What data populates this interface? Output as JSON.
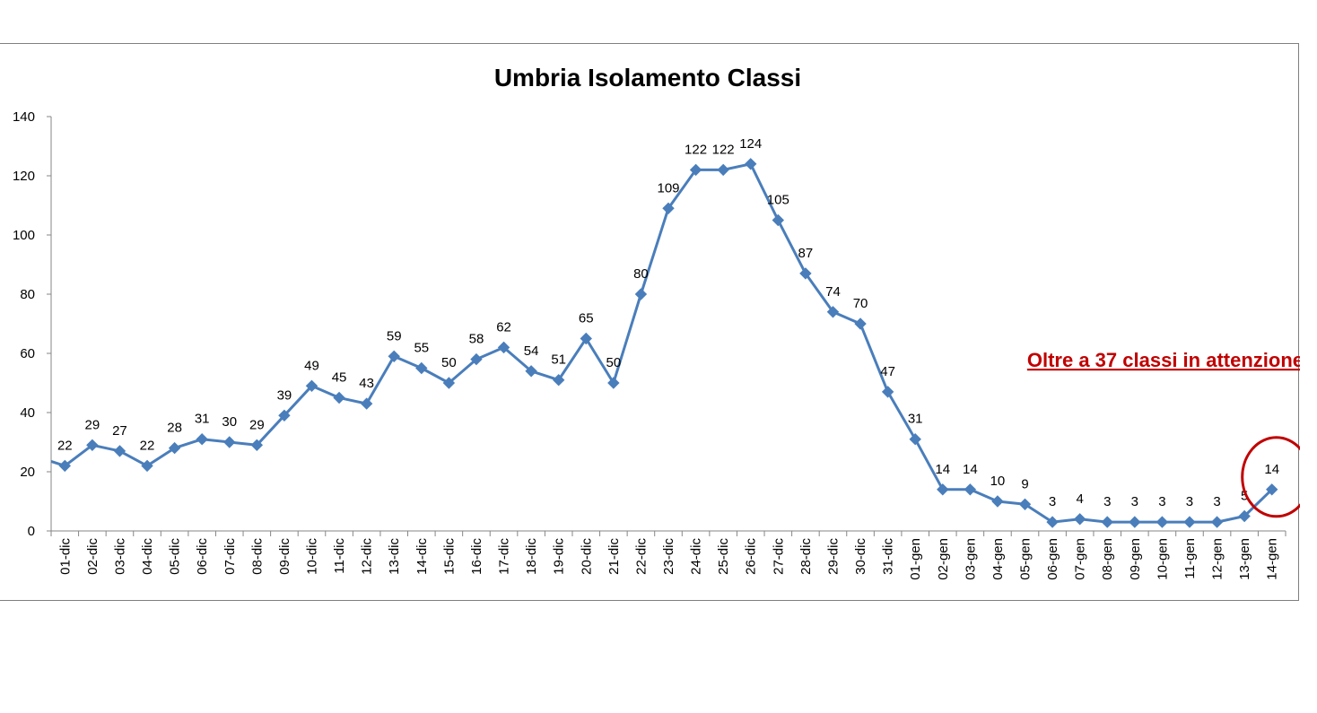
{
  "chart_data": {
    "type": "line",
    "title": "Umbria Isolamento Classi",
    "xlabel": "",
    "ylabel": "",
    "ylim": [
      0,
      140
    ],
    "yticks": [
      "0",
      "20",
      "40",
      "60",
      "80",
      "100",
      "120",
      "140"
    ],
    "grid": false,
    "legend": "none",
    "categories": [
      "01-dic",
      "02-dic",
      "03-dic",
      "04-dic",
      "05-dic",
      "06-dic",
      "07-dic",
      "08-dic",
      "09-dic",
      "10-dic",
      "11-dic",
      "12-dic",
      "13-dic",
      "14-dic",
      "15-dic",
      "16-dic",
      "17-dic",
      "18-dic",
      "19-dic",
      "20-dic",
      "21-dic",
      "22-dic",
      "23-dic",
      "24-dic",
      "25-dic",
      "26-dic",
      "27-dic",
      "28-dic",
      "29-dic",
      "30-dic",
      "31-dic",
      "01-gen",
      "02-gen",
      "03-gen",
      "04-gen",
      "05-gen",
      "06-gen",
      "07-gen",
      "08-gen",
      "09-gen",
      "10-gen",
      "11-gen",
      "12-gen",
      "13-gen",
      "14-gen"
    ],
    "series": [
      {
        "values": [
          22,
          29,
          27,
          22,
          28,
          31,
          30,
          29,
          39,
          49,
          45,
          43,
          59,
          55,
          50,
          58,
          62,
          54,
          51,
          65,
          50,
          80,
          109,
          122,
          122,
          124,
          105,
          87,
          74,
          70,
          47,
          31,
          14,
          14,
          10,
          9,
          3,
          4,
          3,
          3,
          3,
          3,
          3,
          5,
          14
        ],
        "color": "#4a7ebb",
        "marker": "diamond"
      }
    ],
    "annotations": [
      {
        "text": "Oltre a 37 classi in attenzione",
        "color": "#c00000",
        "style": "bold-underline"
      },
      {
        "type": "circle",
        "target_category": "14-gen",
        "color": "#c00000"
      }
    ]
  }
}
